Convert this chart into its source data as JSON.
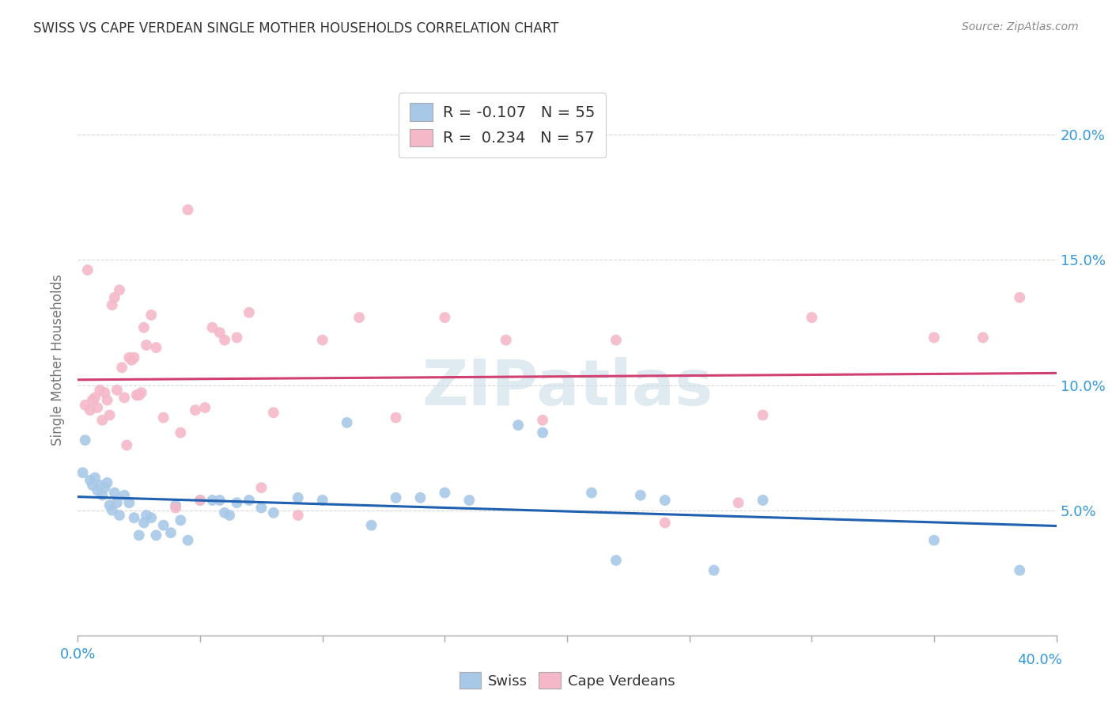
{
  "title": "SWISS VS CAPE VERDEAN SINGLE MOTHER HOUSEHOLDS CORRELATION CHART",
  "source": "Source: ZipAtlas.com",
  "ylabel": "Single Mother Households",
  "xlim": [
    0.0,
    40.0
  ],
  "ylim": [
    0.0,
    22.0
  ],
  "yticks": [
    5.0,
    10.0,
    15.0,
    20.0
  ],
  "xticks": [
    0.0,
    5.0,
    10.0,
    15.0,
    20.0,
    25.0,
    30.0,
    35.0,
    40.0
  ],
  "swiss_R": "-0.107",
  "swiss_N": "55",
  "cape_R": "0.234",
  "cape_N": "57",
  "swiss_color": "#a8c8e8",
  "cape_color": "#f4b8c8",
  "swiss_line_color": "#2060b0",
  "cape_line_color": "#d04070",
  "watermark": "ZIPatlas",
  "swiss_points": [
    [
      0.2,
      6.5
    ],
    [
      0.3,
      7.8
    ],
    [
      0.5,
      6.2
    ],
    [
      0.6,
      6.0
    ],
    [
      0.7,
      6.3
    ],
    [
      0.8,
      5.8
    ],
    [
      0.9,
      6.0
    ],
    [
      1.0,
      5.6
    ],
    [
      1.1,
      5.9
    ],
    [
      1.2,
      6.1
    ],
    [
      1.3,
      5.2
    ],
    [
      1.4,
      5.0
    ],
    [
      1.5,
      5.7
    ],
    [
      1.6,
      5.3
    ],
    [
      1.7,
      4.8
    ],
    [
      1.9,
      5.6
    ],
    [
      2.1,
      5.3
    ],
    [
      2.3,
      4.7
    ],
    [
      2.5,
      4.0
    ],
    [
      2.7,
      4.5
    ],
    [
      2.8,
      4.8
    ],
    [
      3.0,
      4.7
    ],
    [
      3.2,
      4.0
    ],
    [
      3.5,
      4.4
    ],
    [
      3.8,
      4.1
    ],
    [
      4.0,
      5.2
    ],
    [
      4.2,
      4.6
    ],
    [
      4.5,
      3.8
    ],
    [
      5.0,
      5.4
    ],
    [
      5.5,
      5.4
    ],
    [
      5.8,
      5.4
    ],
    [
      6.0,
      4.9
    ],
    [
      6.2,
      4.8
    ],
    [
      6.5,
      5.3
    ],
    [
      7.0,
      5.4
    ],
    [
      7.5,
      5.1
    ],
    [
      8.0,
      4.9
    ],
    [
      9.0,
      5.5
    ],
    [
      10.0,
      5.4
    ],
    [
      11.0,
      8.5
    ],
    [
      12.0,
      4.4
    ],
    [
      13.0,
      5.5
    ],
    [
      14.0,
      5.5
    ],
    [
      15.0,
      5.7
    ],
    [
      16.0,
      5.4
    ],
    [
      18.0,
      8.4
    ],
    [
      19.0,
      8.1
    ],
    [
      21.0,
      5.7
    ],
    [
      22.0,
      3.0
    ],
    [
      23.0,
      5.6
    ],
    [
      24.0,
      5.4
    ],
    [
      26.0,
      2.6
    ],
    [
      28.0,
      5.4
    ],
    [
      35.0,
      3.8
    ],
    [
      38.5,
      2.6
    ]
  ],
  "cape_points": [
    [
      0.3,
      9.2
    ],
    [
      0.4,
      14.6
    ],
    [
      0.5,
      9.0
    ],
    [
      0.6,
      9.4
    ],
    [
      0.7,
      9.5
    ],
    [
      0.8,
      9.1
    ],
    [
      0.9,
      9.8
    ],
    [
      1.0,
      8.6
    ],
    [
      1.1,
      9.7
    ],
    [
      1.2,
      9.4
    ],
    [
      1.3,
      8.8
    ],
    [
      1.4,
      13.2
    ],
    [
      1.5,
      13.5
    ],
    [
      1.6,
      9.8
    ],
    [
      1.7,
      13.8
    ],
    [
      1.8,
      10.7
    ],
    [
      1.9,
      9.5
    ],
    [
      2.0,
      7.6
    ],
    [
      2.1,
      11.1
    ],
    [
      2.2,
      11.0
    ],
    [
      2.3,
      11.1
    ],
    [
      2.4,
      9.6
    ],
    [
      2.5,
      9.6
    ],
    [
      2.6,
      9.7
    ],
    [
      2.7,
      12.3
    ],
    [
      2.8,
      11.6
    ],
    [
      3.0,
      12.8
    ],
    [
      3.2,
      11.5
    ],
    [
      3.5,
      8.7
    ],
    [
      4.0,
      5.1
    ],
    [
      4.2,
      8.1
    ],
    [
      4.5,
      17.0
    ],
    [
      4.8,
      9.0
    ],
    [
      5.0,
      5.4
    ],
    [
      5.2,
      9.1
    ],
    [
      5.5,
      12.3
    ],
    [
      5.8,
      12.1
    ],
    [
      6.0,
      11.8
    ],
    [
      6.5,
      11.9
    ],
    [
      7.0,
      12.9
    ],
    [
      7.5,
      5.9
    ],
    [
      8.0,
      8.9
    ],
    [
      9.0,
      4.8
    ],
    [
      10.0,
      11.8
    ],
    [
      11.5,
      12.7
    ],
    [
      13.0,
      8.7
    ],
    [
      15.0,
      12.7
    ],
    [
      17.5,
      11.8
    ],
    [
      19.0,
      8.6
    ],
    [
      22.0,
      11.8
    ],
    [
      24.0,
      4.5
    ],
    [
      27.0,
      5.3
    ],
    [
      28.0,
      8.8
    ],
    [
      30.0,
      12.7
    ],
    [
      35.0,
      11.9
    ],
    [
      37.0,
      11.9
    ],
    [
      38.5,
      13.5
    ]
  ],
  "background_color": "#ffffff",
  "grid_color": "#d8d8d8",
  "tick_color": "#3399dd",
  "axis_label_color": "#777777",
  "legend_text_color": "#333333",
  "watermark_color": "#ccdde8"
}
